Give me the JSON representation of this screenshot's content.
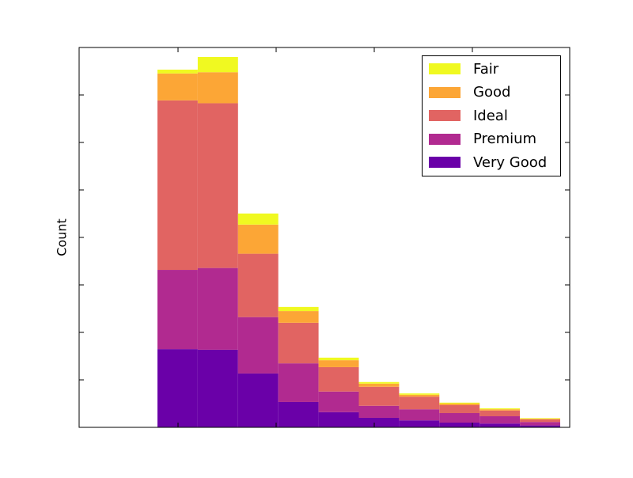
{
  "chart_data": {
    "type": "bar",
    "stacked": true,
    "histogram": true,
    "title": "",
    "xlabel": "",
    "ylabel": "Count",
    "bins": 10,
    "series": [
      {
        "name": "Very Good",
        "color": "#6a00a8",
        "values": [
          0.247,
          0.245,
          0.17,
          0.08,
          0.048,
          0.03,
          0.022,
          0.015,
          0.012,
          0.006
        ]
      },
      {
        "name": "Premium",
        "color": "#b12a90",
        "values": [
          0.25,
          0.258,
          0.178,
          0.122,
          0.065,
          0.038,
          0.035,
          0.03,
          0.023,
          0.011
        ]
      },
      {
        "name": "Ideal",
        "color": "#e16462",
        "values": [
          0.535,
          0.52,
          0.2,
          0.128,
          0.077,
          0.06,
          0.04,
          0.025,
          0.018,
          0.008
        ]
      },
      {
        "name": "Good",
        "color": "#fca636",
        "values": [
          0.085,
          0.098,
          0.092,
          0.037,
          0.022,
          0.01,
          0.006,
          0.005,
          0.004,
          0.002
        ]
      },
      {
        "name": "Fair",
        "color": "#f0f921",
        "values": [
          0.012,
          0.048,
          0.035,
          0.013,
          0.008,
          0.005,
          0.004,
          0.003,
          0.003,
          0.002
        ]
      }
    ],
    "legend_order": [
      "Fair",
      "Good",
      "Ideal",
      "Premium",
      "Very Good"
    ],
    "legend_position": "top-right",
    "x_ticks": 4,
    "y_ticks": 7,
    "grid": false
  }
}
